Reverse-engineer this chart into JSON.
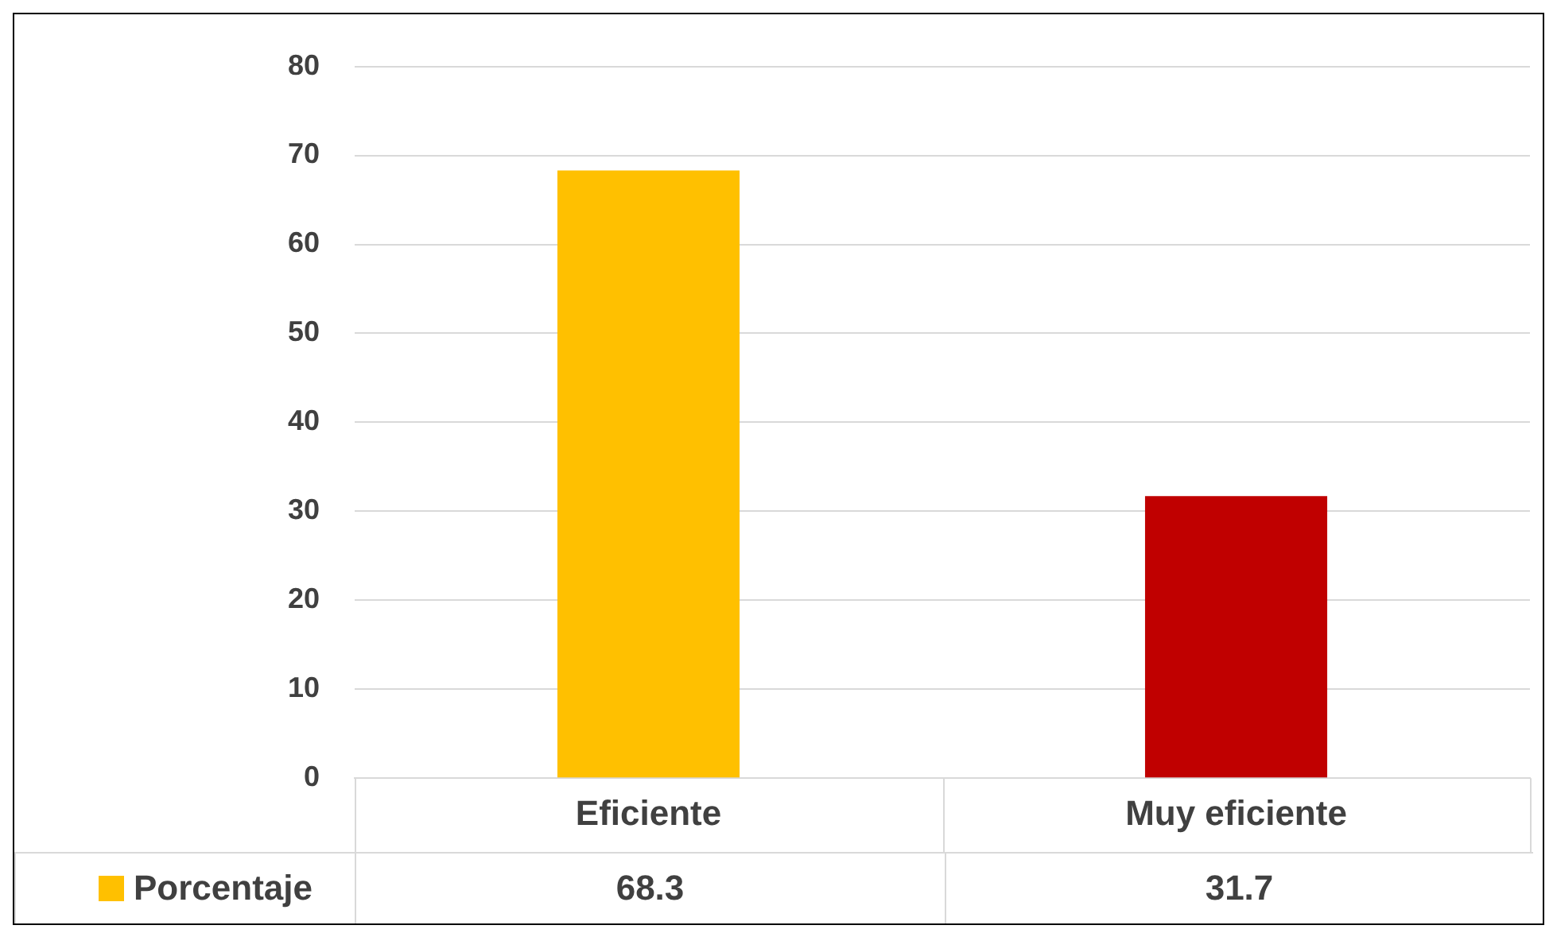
{
  "chart_data": {
    "type": "bar",
    "categories": [
      "Eficiente",
      "Muy eficiente"
    ],
    "series": [
      {
        "name": "Porcentaje",
        "color": "#ffc000",
        "colors": [
          "#ffc000",
          "#c00000"
        ],
        "values": [
          68.3,
          31.7
        ]
      }
    ],
    "ylim": [
      0,
      80
    ],
    "yticks": [
      0,
      10,
      20,
      30,
      40,
      50,
      60,
      70,
      80
    ],
    "grid": "y",
    "legend": "bottom",
    "data_labels": true
  }
}
